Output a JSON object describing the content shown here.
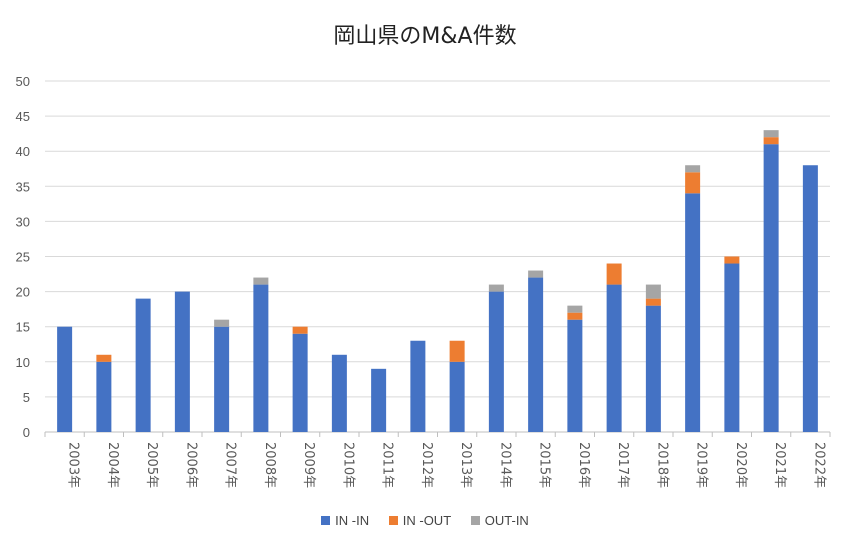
{
  "chart_data": {
    "type": "bar",
    "stacked": true,
    "title": "岡山県のM&A件数",
    "xlabel": "",
    "ylabel": "",
    "ylim": [
      0,
      50
    ],
    "yticks": [
      0,
      5,
      10,
      15,
      20,
      25,
      30,
      35,
      40,
      45,
      50
    ],
    "grid": true,
    "legend_position": "bottom",
    "categories": [
      "2003年",
      "2004年",
      "2005年",
      "2006年",
      "2007年",
      "2008年",
      "2009年",
      "2010年",
      "2011年",
      "2012年",
      "2013年",
      "2014年",
      "2015年",
      "2016年",
      "2017年",
      "2018年",
      "2019年",
      "2020年",
      "2021年",
      "2022年"
    ],
    "series": [
      {
        "name": "IN -IN",
        "color": "#4472C4",
        "values": [
          15,
          10,
          19,
          20,
          15,
          21,
          14,
          11,
          9,
          13,
          10,
          20,
          22,
          16,
          21,
          18,
          34,
          24,
          41,
          38
        ]
      },
      {
        "name": "IN -OUT",
        "color": "#ED7D31",
        "values": [
          0,
          1,
          0,
          0,
          0,
          0,
          1,
          0,
          0,
          0,
          3,
          0,
          0,
          1,
          3,
          1,
          3,
          1,
          1,
          0
        ]
      },
      {
        "name": "OUT-IN",
        "color": "#A5A5A5",
        "values": [
          0,
          0,
          0,
          0,
          1,
          1,
          0,
          0,
          0,
          0,
          0,
          1,
          1,
          1,
          0,
          2,
          1,
          0,
          1,
          0
        ]
      }
    ]
  }
}
